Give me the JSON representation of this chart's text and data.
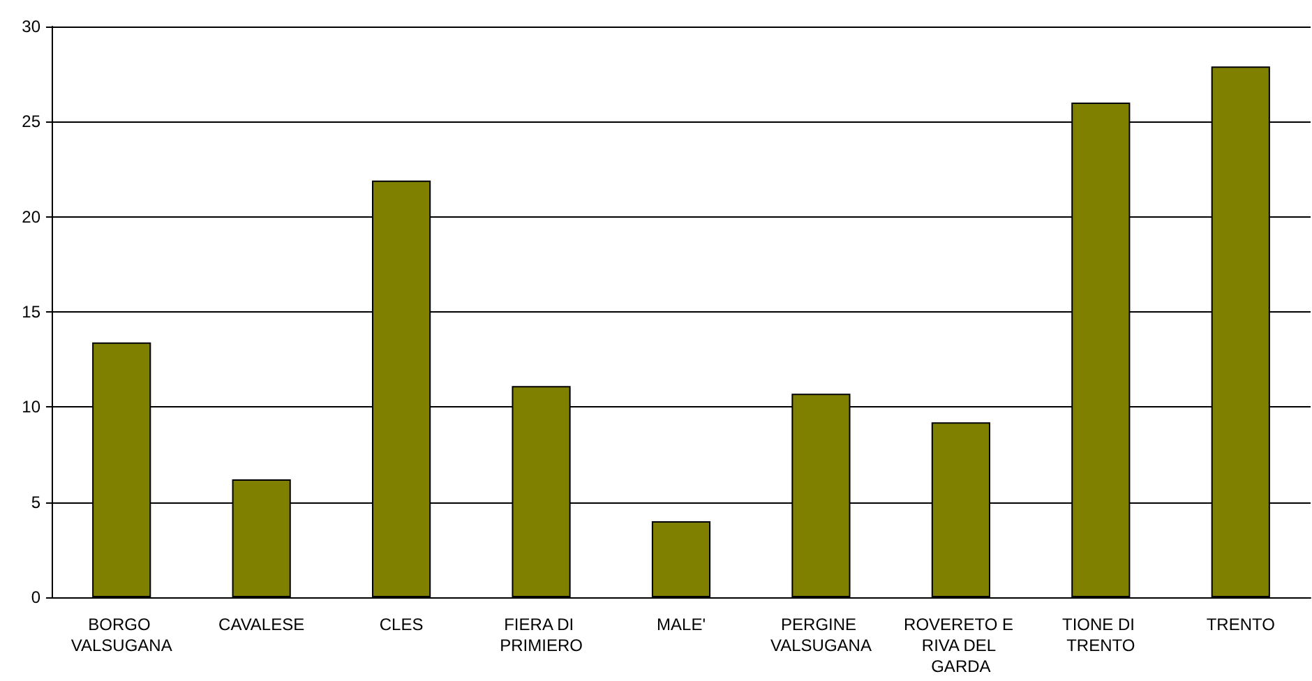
{
  "chart_data": {
    "type": "bar",
    "categories": [
      "BORGO VALSUGANA",
      "CAVALESE",
      "CLES",
      "FIERA DI PRIMIERO",
      "MALE'",
      "PERGINE VALSUGANA",
      "ROVERETO E RIVA DEL GARDA",
      "TIONE DI TRENTO",
      "TRENTO"
    ],
    "values": [
      13.4,
      6.2,
      21.9,
      11.1,
      4.0,
      10.7,
      9.2,
      26.0,
      27.9
    ],
    "color": "#808000",
    "ylim": [
      0,
      30
    ],
    "yticks": [
      0,
      5,
      10,
      15,
      20,
      25,
      30
    ],
    "grid": "y"
  }
}
